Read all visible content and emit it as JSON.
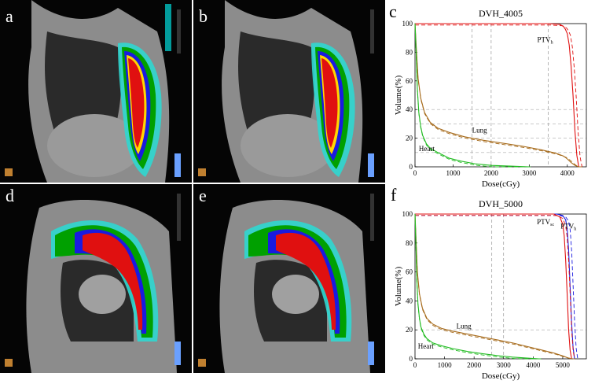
{
  "panels": {
    "a": {
      "label": "a"
    },
    "b": {
      "label": "b"
    },
    "c": {
      "label": "c"
    },
    "d": {
      "label": "d"
    },
    "e": {
      "label": "e"
    },
    "f": {
      "label": "f"
    }
  },
  "ct_legend_colors": [
    "#ffffff",
    "#ff00ff",
    "#ff0000",
    "#ff8c00",
    "#ffd700",
    "#ffff00",
    "#0000ff",
    "#00aa00",
    "#00ff00",
    "#00ffff"
  ],
  "chart_data": [
    {
      "type": "line",
      "title": "DVH_4005",
      "xlabel": "Dose(cGy)",
      "ylabel": "Volume(%)",
      "xlim": [
        0,
        4500
      ],
      "ylim": [
        0,
        100
      ],
      "xticks": [
        "0",
        "1000",
        "2000",
        "3000",
        "4000"
      ],
      "yticks": [
        "0",
        "20",
        "40",
        "60",
        "80",
        "100"
      ],
      "annotations": {
        "ptv": "PTV",
        "ptv_sub": "h",
        "lung": "Lung",
        "heart": "Heart"
      },
      "series": [
        {
          "name": "PTV_h",
          "color": "#e01010",
          "x": [
            0,
            3500,
            3800,
            3900,
            3950,
            4000,
            4050,
            4100,
            4150,
            4200,
            4250,
            4300
          ],
          "y": [
            100,
            100,
            99.5,
            98,
            96,
            93,
            85,
            70,
            50,
            25,
            8,
            0
          ]
        },
        {
          "name": "Lung",
          "color": "#a66a1a",
          "x": [
            0,
            30,
            80,
            150,
            250,
            400,
            600,
            900,
            1300,
            1800,
            2300,
            2800,
            3300,
            3700,
            3900,
            4000,
            4100,
            4200,
            4300
          ],
          "y": [
            100,
            85,
            62,
            48,
            38,
            31,
            27,
            24,
            21,
            18.5,
            16.5,
            14.5,
            12,
            9.5,
            7.5,
            5.5,
            3,
            1,
            0
          ]
        },
        {
          "name": "Heart",
          "color": "#22bb22",
          "x": [
            0,
            30,
            60,
            100,
            150,
            200,
            300,
            400,
            600,
            900,
            1200,
            1600,
            2000,
            2500,
            3000
          ],
          "y": [
            100,
            80,
            55,
            38,
            28,
            22,
            16,
            13,
            10,
            6,
            4,
            2,
            1,
            0.5,
            0
          ]
        }
      ]
    },
    {
      "type": "line",
      "title": "DVH_5000",
      "xlabel": "Dose(cGy)",
      "ylabel": "Volume(%)",
      "xlim": [
        0,
        5800
      ],
      "ylim": [
        0,
        100
      ],
      "xticks": [
        "0",
        "1000",
        "2000",
        "3000",
        "4000",
        "5000"
      ],
      "yticks": [
        "0",
        "20",
        "40",
        "60",
        "80",
        "100"
      ],
      "annotations": {
        "ptv_sc": "PTV",
        "ptv_sc_sub": "sc",
        "ptv_h": "PTV",
        "ptv_h_sub": "h",
        "lung": "Lung",
        "heart": "Heart"
      },
      "series": [
        {
          "name": "PTV_sc",
          "color": "#1a1ae0",
          "x": [
            0,
            4800,
            5000,
            5100,
            5150,
            5200,
            5250,
            5300,
            5350,
            5400
          ],
          "y": [
            100,
            100,
            99,
            96,
            90,
            75,
            50,
            25,
            8,
            0
          ]
        },
        {
          "name": "PTV_h",
          "color": "#e01010",
          "x": [
            0,
            4700,
            4900,
            5000,
            5050,
            5100,
            5150,
            5200,
            5250,
            5300
          ],
          "y": [
            100,
            100,
            98,
            93,
            85,
            68,
            45,
            20,
            6,
            0
          ]
        },
        {
          "name": "Lung",
          "color": "#a66a1a",
          "x": [
            0,
            30,
            80,
            150,
            250,
            400,
            600,
            900,
            1300,
            1800,
            2300,
            2800,
            3300,
            3800,
            4300,
            4700,
            5000,
            5200,
            5300
          ],
          "y": [
            100,
            85,
            60,
            45,
            35,
            28,
            24,
            21,
            19,
            17,
            15,
            13,
            11,
            8.5,
            6,
            4,
            2,
            0.5,
            0
          ]
        },
        {
          "name": "Heart",
          "color": "#22bb22",
          "x": [
            0,
            30,
            60,
            100,
            150,
            200,
            300,
            400,
            600,
            900,
            1300,
            1800,
            2300,
            2800,
            3300,
            3800,
            4200
          ],
          "y": [
            100,
            80,
            55,
            38,
            28,
            22,
            17,
            14,
            11,
            9,
            7,
            5,
            3.5,
            2.2,
            1.2,
            0.5,
            0
          ]
        }
      ]
    }
  ]
}
